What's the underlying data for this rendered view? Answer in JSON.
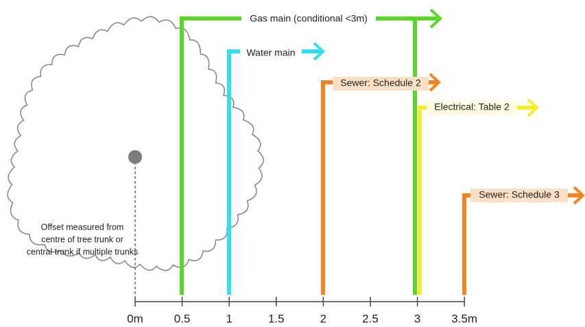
{
  "axis": {
    "ticks": [
      {
        "value": 0,
        "label": "0m"
      },
      {
        "value": 0.5,
        "label": "0.5"
      },
      {
        "value": 1,
        "label": "1"
      },
      {
        "value": 1.5,
        "label": "1.5"
      },
      {
        "value": 2,
        "label": "2"
      },
      {
        "value": 2.5,
        "label": "2.5"
      },
      {
        "value": 3,
        "label": "3"
      },
      {
        "value": 3.5,
        "label": "3.5m"
      }
    ]
  },
  "utilities": [
    {
      "label": "Gas main (conditional <3m)"
    },
    {
      "label": "Water main"
    },
    {
      "label": "Sewer: Schedule 2"
    },
    {
      "label": "Electrical: Table 2"
    },
    {
      "label": "Sewer: Schedule 3"
    }
  ],
  "note": [
    "Offset measured from",
    "centre of tree trunk or",
    "central trunk if multiple trunks"
  ]
}
